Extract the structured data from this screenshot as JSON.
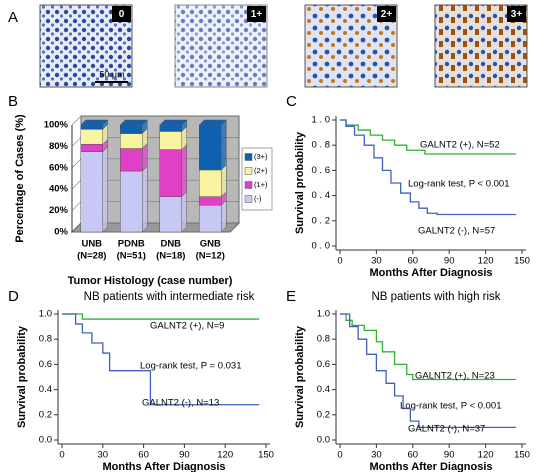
{
  "panel_letters": [
    "A",
    "B",
    "C",
    "D",
    "E"
  ],
  "panel_a": {
    "labels": [
      "0",
      "1+",
      "2+",
      "3+"
    ],
    "scale_bar": "50 μm"
  },
  "chart_data": [
    {
      "type": "bar",
      "stacked": true,
      "categories": [
        "UNB",
        "PDNB",
        "DNB",
        "GNB"
      ],
      "category_notes": [
        "(N=28)",
        "(N=51)",
        "(N=18)",
        "(N=12)"
      ],
      "xlabel": "Tumor Histology (case number)",
      "ylabel": "Percentage of Cases (%)",
      "ylim": [
        0,
        100
      ],
      "yticks": [
        {
          "value": 0,
          "label": "0%"
        },
        {
          "value": 20,
          "label": "20%"
        },
        {
          "value": 40,
          "label": "40%"
        },
        {
          "value": 60,
          "label": "60%"
        },
        {
          "value": 80,
          "label": "80%"
        },
        {
          "value": 100,
          "label": "100%"
        }
      ],
      "series": [
        {
          "name": "(-)",
          "color": "#c8c8f4",
          "values": [
            75,
            57,
            33,
            25
          ]
        },
        {
          "name": "(1+)",
          "color": "#e040c8",
          "values": [
            7,
            21,
            44,
            8
          ]
        },
        {
          "name": "(2+)",
          "color": "#f8f4a0",
          "values": [
            14,
            14,
            17,
            25
          ]
        },
        {
          "name": "(3+)",
          "color": "#1060b0",
          "values": [
            4,
            8,
            6,
            42
          ]
        }
      ]
    },
    {
      "type": "line",
      "xlabel": "Months After Diagnosis",
      "ylabel": "Survival probability",
      "xlim": [
        0,
        150
      ],
      "xticks": [
        0,
        30,
        60,
        90,
        120,
        150
      ],
      "ylim": [
        0,
        1
      ],
      "yticks": [
        {
          "value": 0,
          "label": "0 . 0"
        },
        {
          "value": 0.2,
          "label": "0 . 2"
        },
        {
          "value": 0.4,
          "label": "0 . 4"
        },
        {
          "value": 0.6,
          "label": "0 . 6"
        },
        {
          "value": 0.8,
          "label": "0 . 8"
        },
        {
          "value": 1,
          "label": "1 . 0"
        }
      ],
      "annotations": [
        "GALNT2 (+), N=52",
        "Log-rank test, P < 0.001",
        "GALNT2 (-), N=57"
      ],
      "series": [
        {
          "color": "#30b030",
          "x": [
            0,
            5,
            5,
            15,
            15,
            25,
            25,
            35,
            35,
            45,
            45,
            55,
            55,
            70,
            70,
            145
          ],
          "values": [
            1,
            1,
            0.96,
            0.96,
            0.92,
            0.92,
            0.88,
            0.88,
            0.84,
            0.84,
            0.8,
            0.8,
            0.76,
            0.76,
            0.73,
            0.73
          ]
        },
        {
          "color": "#4060c0",
          "x": [
            0,
            5,
            5,
            12,
            12,
            20,
            20,
            28,
            28,
            35,
            35,
            42,
            42,
            50,
            50,
            58,
            58,
            65,
            65,
            72,
            72,
            80,
            80,
            145
          ],
          "values": [
            1,
            1,
            0.95,
            0.95,
            0.88,
            0.88,
            0.8,
            0.8,
            0.7,
            0.7,
            0.6,
            0.6,
            0.5,
            0.5,
            0.42,
            0.42,
            0.35,
            0.35,
            0.3,
            0.3,
            0.26,
            0.26,
            0.25,
            0.25
          ]
        }
      ]
    },
    {
      "type": "line",
      "title": "NB patients with intermediate risk",
      "xlabel": "Months After Diagnosis",
      "ylabel": "Survival probability",
      "xlim": [
        0,
        150
      ],
      "xticks": [
        0,
        30,
        60,
        90,
        120,
        150
      ],
      "ylim": [
        0,
        1
      ],
      "yticks": [
        {
          "value": 0,
          "label": "0.0"
        },
        {
          "value": 0.2,
          "label": "0.2"
        },
        {
          "value": 0.4,
          "label": "0.4"
        },
        {
          "value": 0.6,
          "label": "0.6"
        },
        {
          "value": 0.8,
          "label": "0.8"
        },
        {
          "value": 1,
          "label": "1.0"
        }
      ],
      "annotations": [
        "GALNT2 (+), N=9",
        "Log-rank test, P = 0.031",
        "GALNT2 (-), N=13"
      ],
      "series": [
        {
          "color": "#30b030",
          "x": [
            0,
            15,
            15,
            145
          ],
          "values": [
            1,
            1,
            0.96,
            0.96
          ]
        },
        {
          "color": "#4060c0",
          "x": [
            0,
            10,
            10,
            15,
            15,
            22,
            22,
            30,
            30,
            35,
            35,
            65,
            65,
            145
          ],
          "values": [
            1,
            1,
            0.92,
            0.92,
            0.85,
            0.85,
            0.77,
            0.77,
            0.69,
            0.69,
            0.55,
            0.55,
            0.28,
            0.28
          ]
        }
      ]
    },
    {
      "type": "line",
      "title": "NB patients with high risk",
      "xlabel": "Months After Diagnosis",
      "ylabel": "Survival probability",
      "xlim": [
        0,
        150
      ],
      "xticks": [
        0,
        30,
        60,
        90,
        120,
        150
      ],
      "ylim": [
        0,
        1
      ],
      "yticks": [
        {
          "value": 0,
          "label": "0.0"
        },
        {
          "value": 0.2,
          "label": "0.2"
        },
        {
          "value": 0.4,
          "label": "0.4"
        },
        {
          "value": 0.6,
          "label": "0.6"
        },
        {
          "value": 0.8,
          "label": "0.8"
        },
        {
          "value": 1,
          "label": "1.0"
        }
      ],
      "annotations": [
        "GALNT2 (+), N=23",
        "Log-rank test, P < 0.001",
        "GALNT2 (-), N=37"
      ],
      "series": [
        {
          "color": "#30b030",
          "x": [
            0,
            5,
            5,
            10,
            10,
            20,
            20,
            30,
            30,
            35,
            35,
            45,
            45,
            55,
            55,
            60,
            60,
            145
          ],
          "values": [
            1,
            1,
            0.95,
            0.95,
            0.91,
            0.91,
            0.87,
            0.87,
            0.78,
            0.78,
            0.7,
            0.7,
            0.6,
            0.6,
            0.52,
            0.52,
            0.48,
            0.48
          ]
        },
        {
          "color": "#4060c0",
          "x": [
            0,
            8,
            8,
            15,
            15,
            22,
            22,
            30,
            30,
            38,
            38,
            45,
            45,
            52,
            52,
            58,
            58,
            65,
            65,
            145
          ],
          "values": [
            1,
            1,
            0.9,
            0.9,
            0.8,
            0.8,
            0.68,
            0.68,
            0.55,
            0.55,
            0.45,
            0.45,
            0.35,
            0.35,
            0.25,
            0.25,
            0.15,
            0.15,
            0.1,
            0.1
          ]
        }
      ]
    }
  ]
}
